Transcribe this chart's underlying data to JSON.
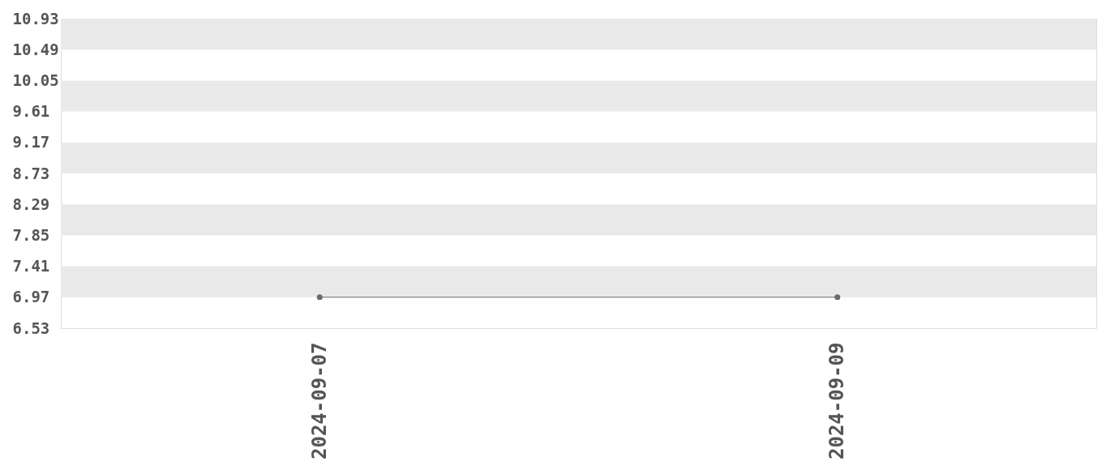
{
  "chart_data": {
    "type": "line",
    "categories": [
      "2024-09-07",
      "2024-09-09"
    ],
    "series": [
      {
        "color": "#6b6b6b",
        "values": [
          6.97,
          6.97
        ]
      }
    ],
    "marker": "circle",
    "ylim": [
      6.53,
      10.93
    ],
    "yticks": [
      6.53,
      6.97,
      7.41,
      7.85,
      8.29,
      8.73,
      9.17,
      9.61,
      10.05,
      10.49,
      10.93
    ],
    "bands": [
      {
        "axis": "y",
        "from": 6.97,
        "to": 7.41,
        "color": "#e9e9e9"
      },
      {
        "axis": "y",
        "from": 7.85,
        "to": 8.29,
        "color": "#e9e9e9"
      },
      {
        "axis": "y",
        "from": 8.73,
        "to": 9.17,
        "color": "#e9e9e9"
      },
      {
        "axis": "y",
        "from": 9.61,
        "to": 10.05,
        "color": "#e9e9e9"
      },
      {
        "axis": "y",
        "from": 10.49,
        "to": 10.93,
        "color": "#e9e9e9"
      }
    ]
  }
}
